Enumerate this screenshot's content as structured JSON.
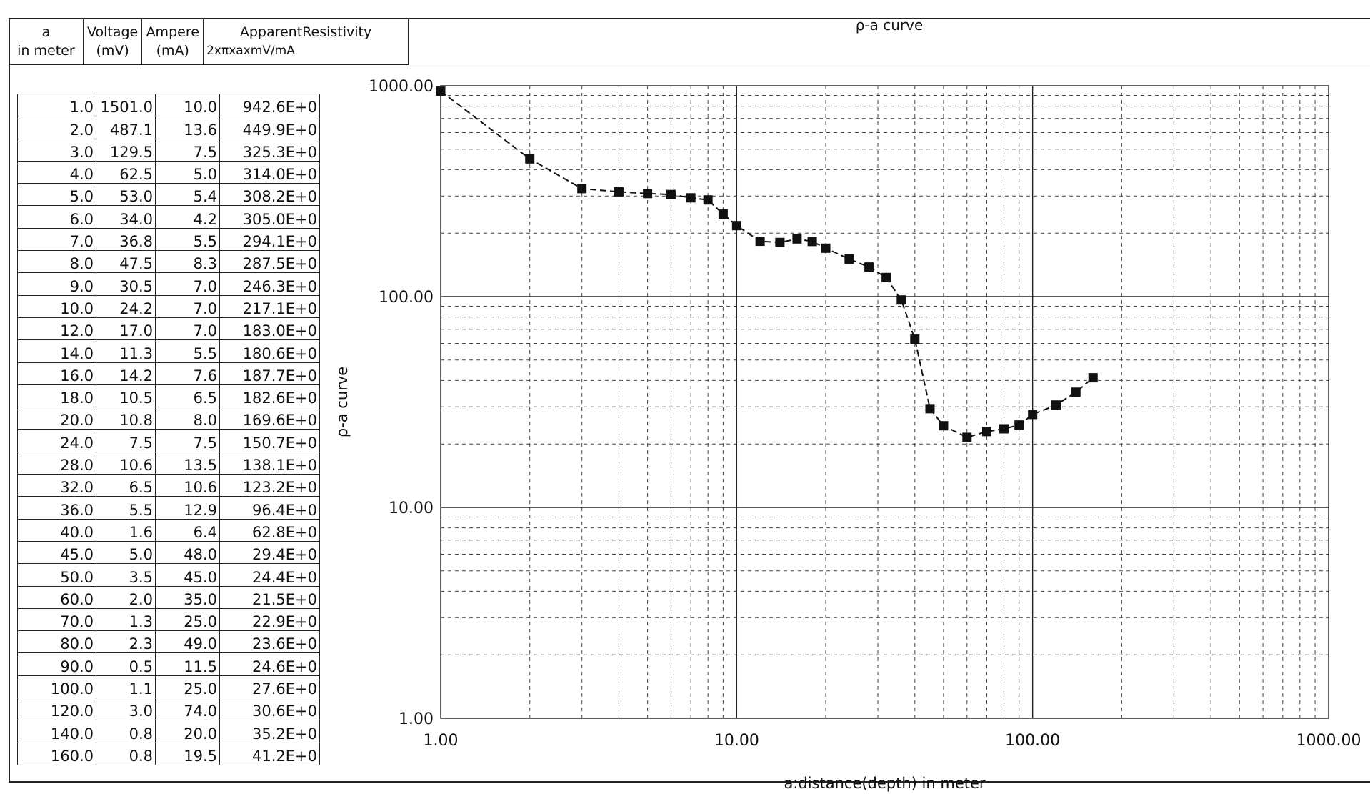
{
  "header": {
    "col_a": [
      "a",
      "in meter"
    ],
    "col_voltage": [
      "Voltage",
      "(mV)"
    ],
    "col_ampere": [
      "Ampere",
      "(mA)"
    ],
    "col_resistivity": [
      "ApparentResistivity",
      "2xπxaxmV/mA"
    ]
  },
  "rows": [
    [
      "1.0",
      "1501.0",
      "10.0",
      "942.6E+0"
    ],
    [
      "2.0",
      "487.1",
      "13.6",
      "449.9E+0"
    ],
    [
      "3.0",
      "129.5",
      "7.5",
      "325.3E+0"
    ],
    [
      "4.0",
      "62.5",
      "5.0",
      "314.0E+0"
    ],
    [
      "5.0",
      "53.0",
      "5.4",
      "308.2E+0"
    ],
    [
      "6.0",
      "34.0",
      "4.2",
      "305.0E+0"
    ],
    [
      "7.0",
      "36.8",
      "5.5",
      "294.1E+0"
    ],
    [
      "8.0",
      "47.5",
      "8.3",
      "287.5E+0"
    ],
    [
      "9.0",
      "30.5",
      "7.0",
      "246.3E+0"
    ],
    [
      "10.0",
      "24.2",
      "7.0",
      "217.1E+0"
    ],
    [
      "12.0",
      "17.0",
      "7.0",
      "183.0E+0"
    ],
    [
      "14.0",
      "11.3",
      "5.5",
      "180.6E+0"
    ],
    [
      "16.0",
      "14.2",
      "7.6",
      "187.7E+0"
    ],
    [
      "18.0",
      "10.5",
      "6.5",
      "182.6E+0"
    ],
    [
      "20.0",
      "10.8",
      "8.0",
      "169.6E+0"
    ],
    [
      "24.0",
      "7.5",
      "7.5",
      "150.7E+0"
    ],
    [
      "28.0",
      "10.6",
      "13.5",
      "138.1E+0"
    ],
    [
      "32.0",
      "6.5",
      "10.6",
      "123.2E+0"
    ],
    [
      "36.0",
      "5.5",
      "12.9",
      "96.4E+0"
    ],
    [
      "40.0",
      "1.6",
      "6.4",
      "62.8E+0"
    ],
    [
      "45.0",
      "5.0",
      "48.0",
      "29.4E+0"
    ],
    [
      "50.0",
      "3.5",
      "45.0",
      "24.4E+0"
    ],
    [
      "60.0",
      "2.0",
      "35.0",
      "21.5E+0"
    ],
    [
      "70.0",
      "1.3",
      "25.0",
      "22.9E+0"
    ],
    [
      "80.0",
      "2.3",
      "49.0",
      "23.6E+0"
    ],
    [
      "90.0",
      "0.5",
      "11.5",
      "24.6E+0"
    ],
    [
      "100.0",
      "1.1",
      "25.0",
      "27.6E+0"
    ],
    [
      "120.0",
      "3.0",
      "74.0",
      "30.6E+0"
    ],
    [
      "140.0",
      "0.8",
      "20.0",
      "35.2E+0"
    ],
    [
      "160.0",
      "0.8",
      "19.5",
      "41.2E+0"
    ]
  ],
  "chart_data": {
    "type": "scatter",
    "title": "ρ-a curve",
    "xlabel": "a:distance(depth) in meter",
    "ylabel": "ρ-a curve",
    "xscale": "log",
    "yscale": "log",
    "xlim": [
      1,
      1000
    ],
    "ylim": [
      1,
      1000
    ],
    "x_ticks": [
      "1.00",
      "10.00",
      "100.00",
      "1000.00"
    ],
    "y_ticks": [
      "1.00",
      "10.00",
      "100.00",
      "1000.00"
    ],
    "grid": true,
    "line_style": "dashed",
    "marker": "square",
    "series": [
      {
        "x": [
          1,
          2,
          3,
          4,
          5,
          6,
          7,
          8,
          9,
          10,
          12,
          14,
          16,
          18,
          20,
          24,
          28,
          32,
          36,
          40,
          45,
          50,
          60,
          70,
          80,
          90,
          100,
          120,
          140,
          160
        ],
        "y": [
          942.6,
          449.9,
          325.3,
          314.0,
          308.2,
          305.0,
          294.1,
          287.5,
          246.3,
          217.1,
          183.0,
          180.6,
          187.7,
          182.6,
          169.6,
          150.7,
          138.1,
          123.2,
          96.4,
          62.8,
          29.4,
          24.4,
          21.5,
          22.9,
          23.6,
          24.6,
          27.6,
          30.6,
          35.2,
          41.2
        ]
      }
    ]
  }
}
